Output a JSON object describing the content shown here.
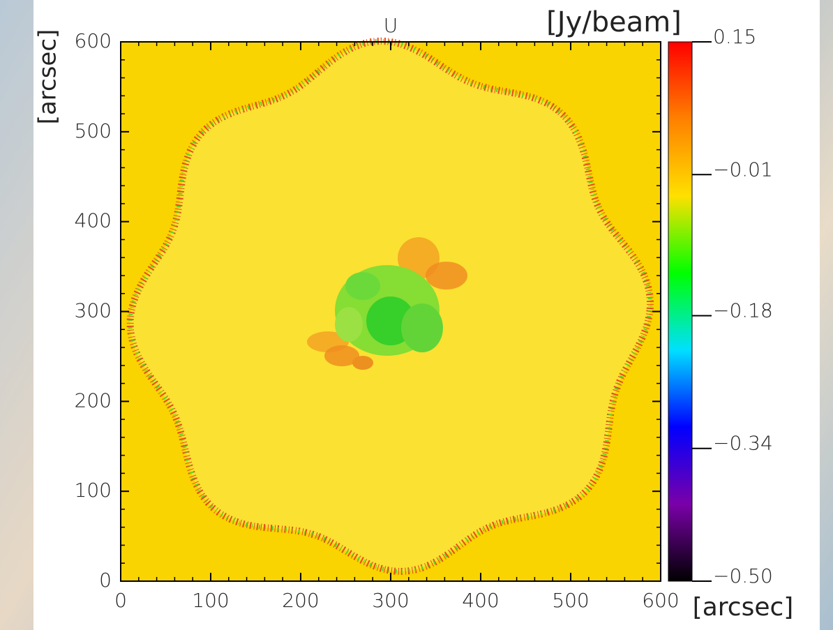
{
  "chart_data": {
    "type": "image",
    "title": "U",
    "xlabel": "[arcsec]",
    "ylabel": "[arcsec]",
    "colorbar_label": "[Jy/beam]",
    "xlim": [
      0,
      600
    ],
    "ylim": [
      0,
      600
    ],
    "xticks": [
      0,
      100,
      200,
      300,
      400,
      500,
      600
    ],
    "yticks": [
      0,
      100,
      200,
      300,
      400,
      500,
      600
    ],
    "clim": [
      -0.5,
      0.15
    ],
    "cticks": [
      {
        "value": -0.5,
        "label": "−0.50"
      },
      {
        "value": -0.34,
        "label": "−0.34"
      },
      {
        "value": -0.18,
        "label": "−0.18"
      },
      {
        "value": -0.01,
        "label": "−0.01"
      },
      0.15
    ],
    "colormap": [
      "#000000",
      "#7a00a8",
      "#0000ff",
      "#00e0ff",
      "#00ff00",
      "#ffe000",
      "#ff8000",
      "#ff0000"
    ]
  }
}
